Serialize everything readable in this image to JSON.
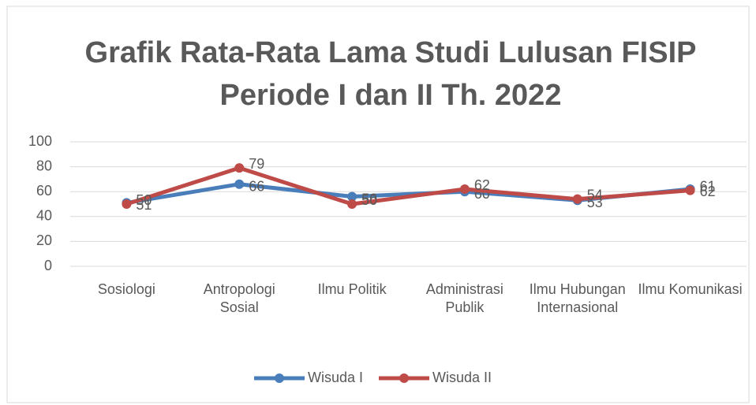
{
  "chart_data": {
    "type": "line",
    "title": "Grafik Rata-Rata Lama Studi Lulusan FISIP Periode I dan II Th. 2022",
    "categories": [
      "Sosiologi",
      "Antropologi Sosial",
      "Ilmu Politik",
      "Administrasi Publik",
      "Ilmu Hubungan Internasional",
      "Ilmu Komunikasi"
    ],
    "series": [
      {
        "name": "Wisuda I",
        "color": "#4a7ebb",
        "values": [
          51,
          66,
          56,
          60,
          53,
          62
        ]
      },
      {
        "name": "Wisuda II",
        "color": "#be4b48",
        "values": [
          50,
          79,
          50,
          62,
          54,
          61
        ]
      }
    ],
    "ylim": [
      0,
      100
    ],
    "yticks": [
      0,
      20,
      40,
      60,
      80,
      100
    ],
    "grid": true,
    "legend": "bottom"
  }
}
